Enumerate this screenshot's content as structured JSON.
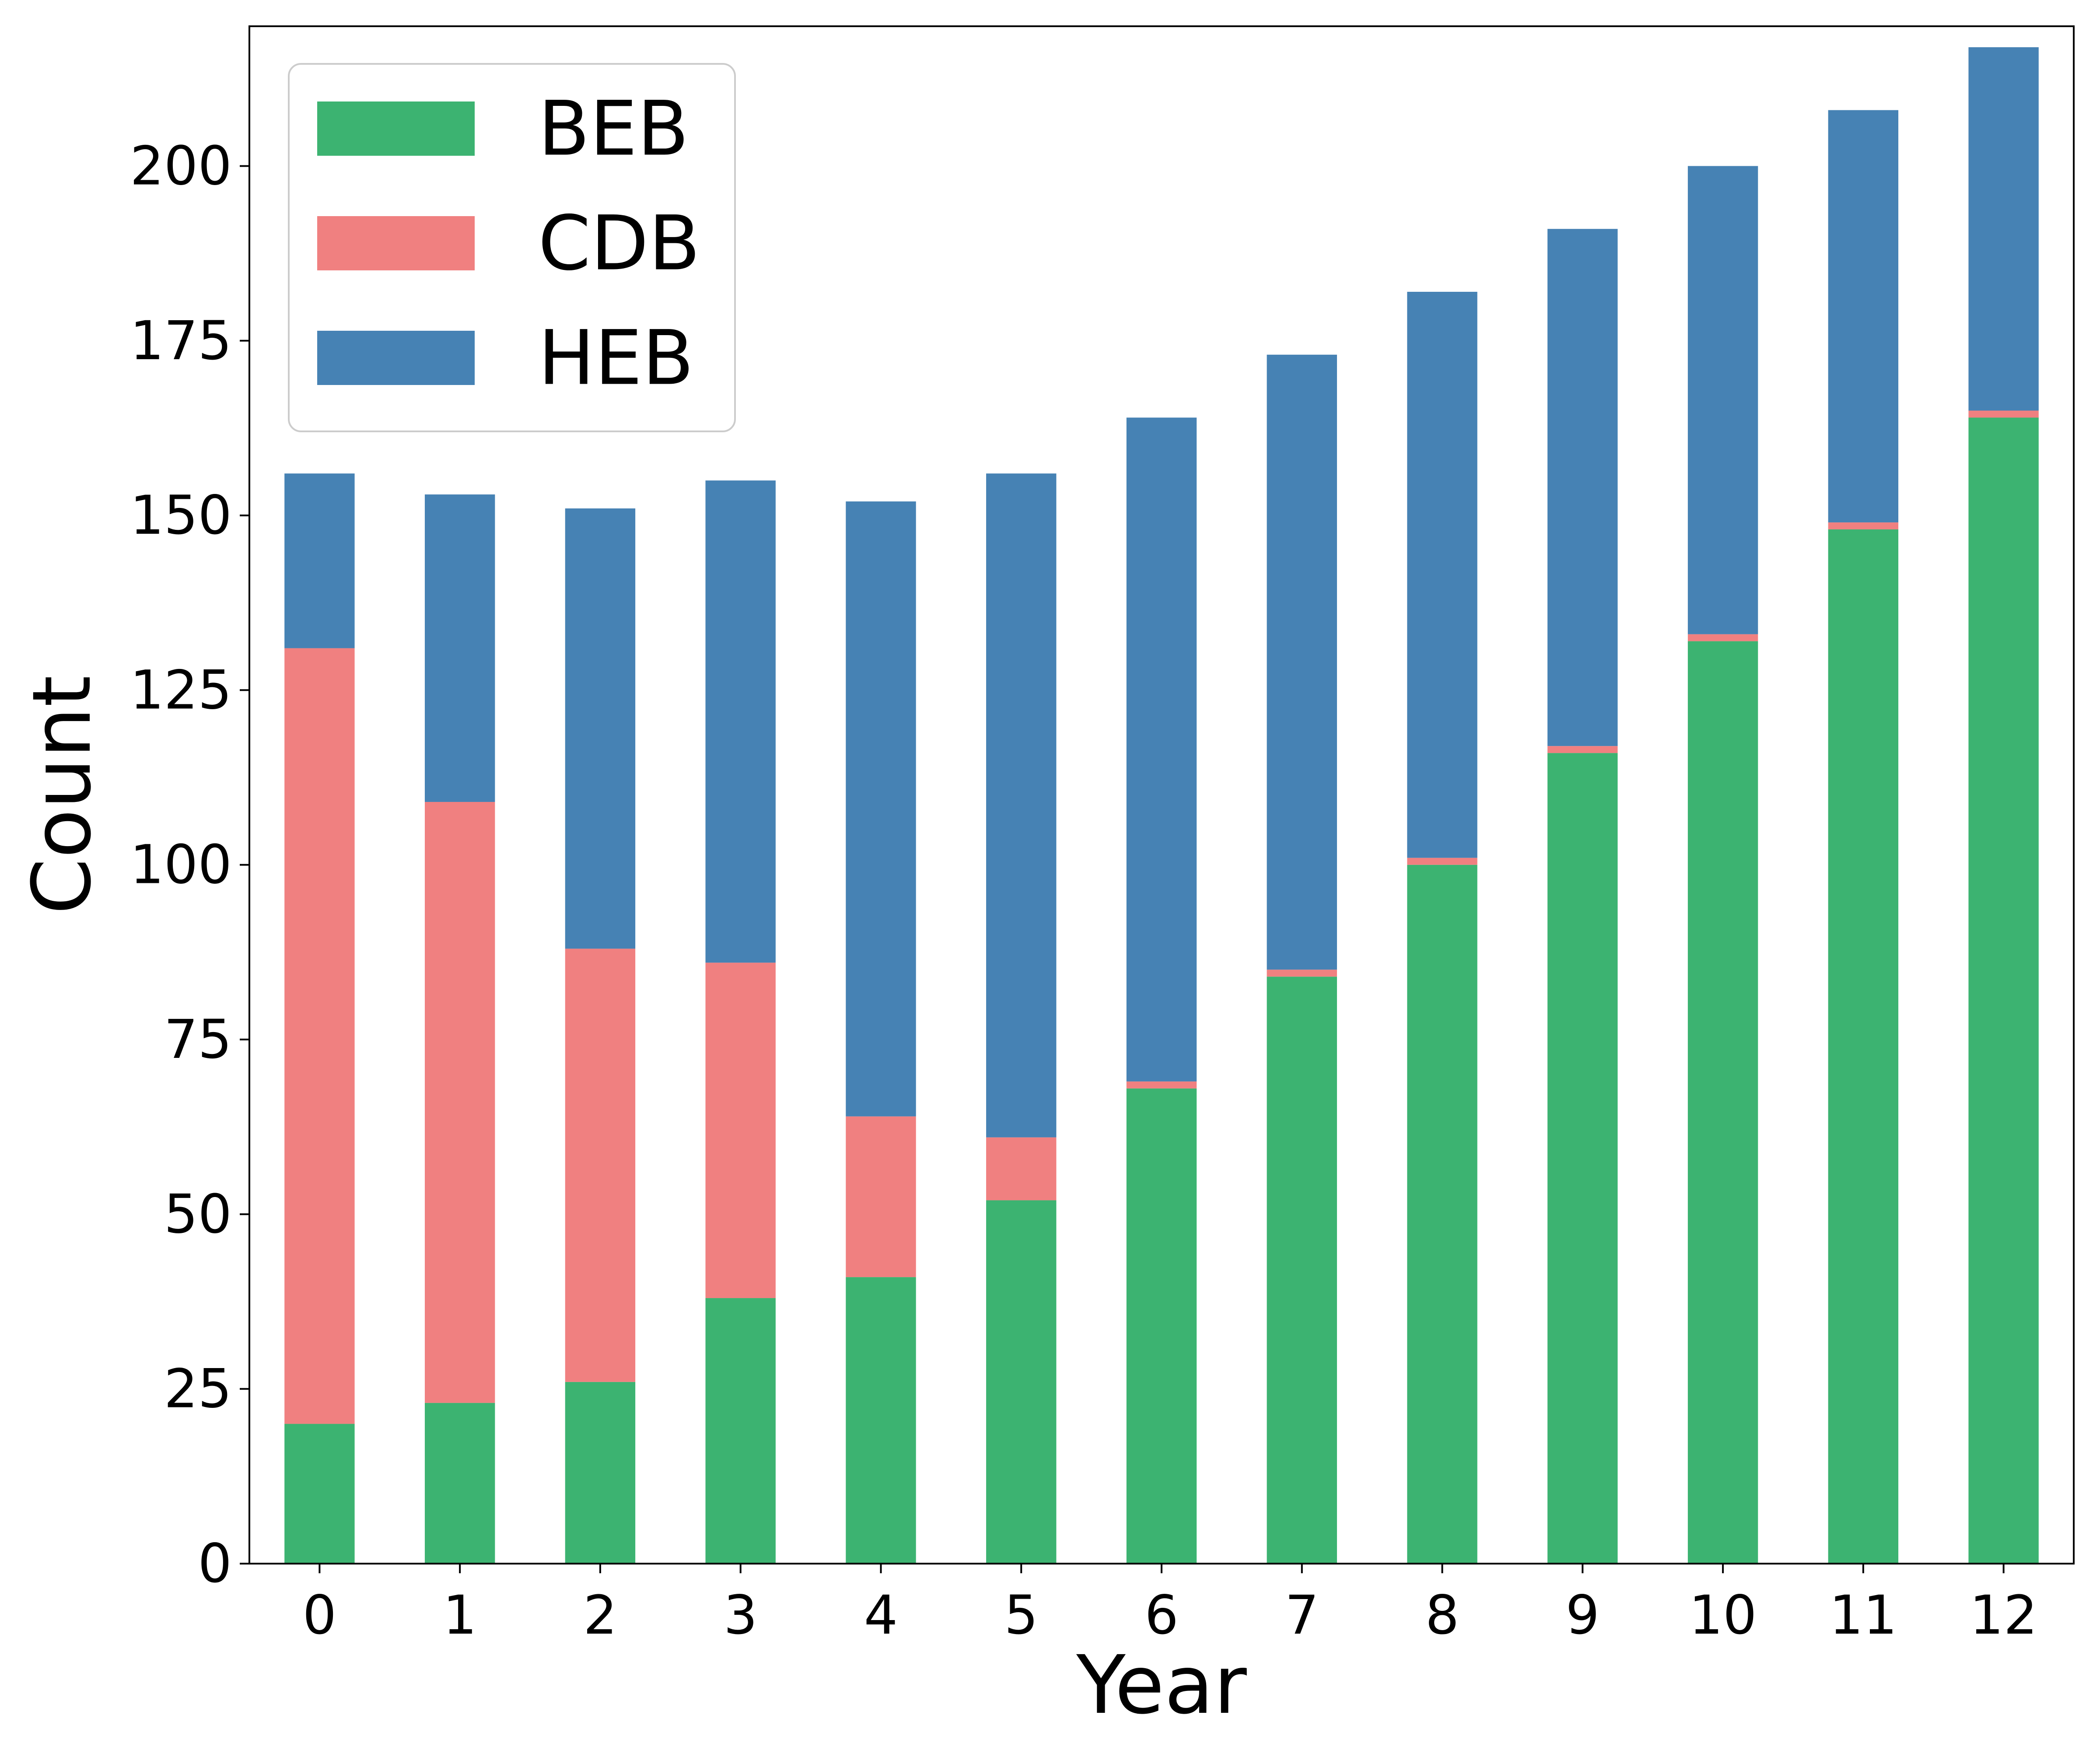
{
  "chart_data": {
    "type": "bar",
    "stacked": true,
    "title": "",
    "xlabel": "Year",
    "ylabel": "Count",
    "categories": [
      "0",
      "1",
      "2",
      "3",
      "4",
      "5",
      "6",
      "7",
      "8",
      "9",
      "10",
      "11",
      "12"
    ],
    "ylim": [
      0,
      220
    ],
    "yticks": [
      0,
      25,
      50,
      75,
      100,
      125,
      150,
      175,
      200
    ],
    "grid": false,
    "legend_position": "upper-left",
    "series": [
      {
        "name": "BEB",
        "color": "#3cb371",
        "values": [
          20,
          23,
          26,
          38,
          41,
          52,
          68,
          84,
          100,
          116,
          132,
          148,
          164
        ]
      },
      {
        "name": "CDB",
        "color": "#f08080",
        "values": [
          111,
          86,
          62,
          48,
          23,
          9,
          1,
          1,
          1,
          1,
          1,
          1,
          1
        ]
      },
      {
        "name": "HEB",
        "color": "#4682b4",
        "values": [
          25,
          44,
          63,
          69,
          88,
          95,
          95,
          88,
          81,
          74,
          67,
          59,
          52
        ]
      }
    ]
  }
}
